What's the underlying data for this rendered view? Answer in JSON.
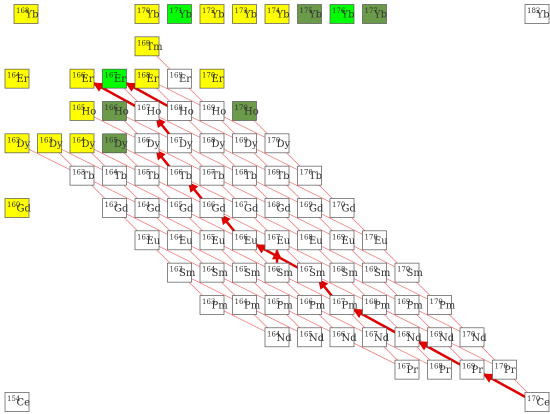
{
  "rows": [
    {
      "element": "Yb",
      "nuclides": [
        {
          "mass": "168",
          "color": "#ffff00"
        },
        {
          "mass": "170",
          "color": "#ffff00"
        },
        {
          "mass": "171",
          "color": "#00ff00"
        },
        {
          "mass": "172",
          "color": "#ffff00"
        },
        {
          "mass": "173",
          "color": "#ffff00"
        },
        {
          "mass": "174",
          "color": "#ffff00"
        },
        {
          "mass": "175",
          "color": "#6b9b4a"
        },
        {
          "mass": "176",
          "color": "#00ff00"
        },
        {
          "mass": "177",
          "color": "#6b9b4a"
        },
        {
          "mass": "182",
          "color": "#ffffff"
        }
      ]
    },
    {
      "element": "Tm",
      "nuclides": [
        {
          "mass": "169",
          "color": "#ffff00"
        }
      ]
    },
    {
      "element": "Er",
      "nuclides": [
        {
          "mass": "164",
          "color": "#ffff00"
        },
        {
          "mass": "166",
          "color": "#ffff00"
        },
        {
          "mass": "167",
          "color": "#00ff00"
        },
        {
          "mass": "168",
          "color": "#ffff00"
        },
        {
          "mass": "169",
          "color": "#ffffff"
        },
        {
          "mass": "170",
          "color": "#ffff00"
        }
      ]
    },
    {
      "element": "Ho",
      "nuclides": [
        {
          "mass": "165",
          "color": "#ffff00"
        },
        {
          "mass": "166",
          "color": "#6b9b4a"
        },
        {
          "mass": "167",
          "color": "#ffffff"
        },
        {
          "mass": "168",
          "color": "#ffffff"
        },
        {
          "mass": "169",
          "color": "#ffffff"
        },
        {
          "mass": "170",
          "color": "#6b9b4a"
        }
      ]
    },
    {
      "element": "Dy",
      "nuclides": [
        {
          "mass": "162",
          "color": "#ffff00"
        },
        {
          "mass": "163",
          "color": "#ffff00"
        },
        {
          "mass": "164",
          "color": "#ffff00"
        },
        {
          "mass": "165",
          "color": "#6b9b4a"
        },
        {
          "mass": "166",
          "color": "#ffffff"
        },
        {
          "mass": "167",
          "color": "#ffffff"
        },
        {
          "mass": "168",
          "color": "#ffffff"
        },
        {
          "mass": "169",
          "color": "#ffffff"
        },
        {
          "mass": "170",
          "color": "#ffffff"
        }
      ]
    },
    {
      "element": "Tb",
      "nuclides": [
        {
          "mass": "163",
          "color": "#ffffff"
        },
        {
          "mass": "164",
          "color": "#ffffff"
        },
        {
          "mass": "165",
          "color": "#ffffff"
        },
        {
          "mass": "166",
          "color": "#ffffff"
        },
        {
          "mass": "167",
          "color": "#ffffff"
        },
        {
          "mass": "168",
          "color": "#ffffff"
        },
        {
          "mass": "169",
          "color": "#ffffff"
        },
        {
          "mass": "170",
          "color": "#ffffff"
        }
      ]
    },
    {
      "element": "Gd",
      "nuclides": [
        {
          "mass": "160",
          "color": "#ffff00"
        },
        {
          "mass": "163",
          "color": "#ffffff"
        },
        {
          "mass": "164",
          "color": "#ffffff"
        },
        {
          "mass": "165",
          "color": "#ffffff"
        },
        {
          "mass": "166",
          "color": "#ffffff"
        },
        {
          "mass": "167",
          "color": "#ffffff"
        },
        {
          "mass": "168",
          "color": "#ffffff"
        },
        {
          "mass": "169",
          "color": "#ffffff"
        },
        {
          "mass": "170",
          "color": "#ffffff"
        }
      ]
    },
    {
      "element": "Eu",
      "nuclides": [
        {
          "mass": "163",
          "color": "#ffffff"
        },
        {
          "mass": "164",
          "color": "#ffffff"
        },
        {
          "mass": "165",
          "color": "#ffffff"
        },
        {
          "mass": "166",
          "color": "#ffffff"
        },
        {
          "mass": "167",
          "color": "#ffffff"
        },
        {
          "mass": "168",
          "color": "#ffffff"
        },
        {
          "mass": "169",
          "color": "#ffffff"
        },
        {
          "mass": "170",
          "color": "#ffffff"
        }
      ]
    },
    {
      "element": "Sm",
      "nuclides": [
        {
          "mass": "163",
          "color": "#ffffff"
        },
        {
          "mass": "164",
          "color": "#ffffff"
        },
        {
          "mass": "165",
          "color": "#ffffff"
        },
        {
          "mass": "166",
          "color": "#ffffff"
        },
        {
          "mass": "167",
          "color": "#ffffff"
        },
        {
          "mass": "168",
          "color": "#ffffff"
        },
        {
          "mass": "169",
          "color": "#ffffff"
        },
        {
          "mass": "170",
          "color": "#ffffff"
        }
      ]
    },
    {
      "element": "Pm",
      "nuclides": [
        {
          "mass": "163",
          "color": "#ffffff"
        },
        {
          "mass": "164",
          "color": "#ffffff"
        },
        {
          "mass": "165",
          "color": "#ffffff"
        },
        {
          "mass": "166",
          "color": "#ffffff"
        },
        {
          "mass": "167",
          "color": "#ffffff"
        },
        {
          "mass": "168",
          "color": "#ffffff"
        },
        {
          "mass": "169",
          "color": "#ffffff"
        },
        {
          "mass": "170",
          "color": "#ffffff"
        }
      ]
    },
    {
      "element": "Nd",
      "nuclides": [
        {
          "mass": "164",
          "color": "#ffffff"
        },
        {
          "mass": "165",
          "color": "#ffffff"
        },
        {
          "mass": "166",
          "color": "#ffffff"
        },
        {
          "mass": "167",
          "color": "#ffffff"
        },
        {
          "mass": "168",
          "color": "#ffffff"
        },
        {
          "mass": "169",
          "color": "#ffffff"
        },
        {
          "mass": "170",
          "color": "#ffffff"
        }
      ]
    },
    {
      "element": "Pr",
      "nuclides": [
        {
          "mass": "167",
          "color": "#ffffff"
        },
        {
          "mass": "168",
          "color": "#ffffff"
        },
        {
          "mass": "169",
          "color": "#ffffff"
        },
        {
          "mass": "170",
          "color": "#ffffff"
        }
      ]
    },
    {
      "element": "Ce",
      "nuclides": [
        {
          "mass": "154",
          "color": "#ffffff"
        },
        {
          "mass": "170",
          "color": "#ffffff"
        }
      ]
    }
  ]
}
